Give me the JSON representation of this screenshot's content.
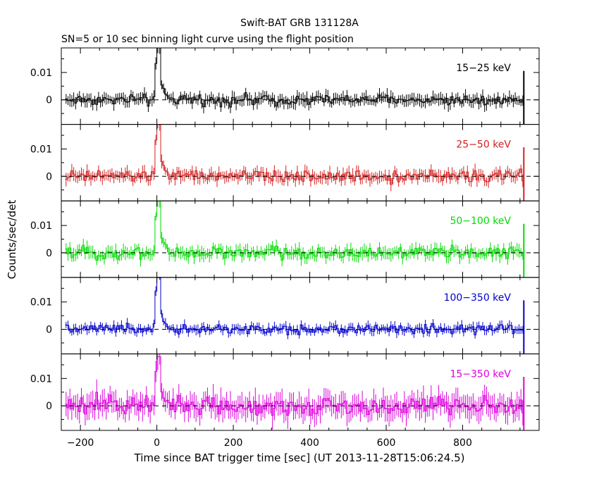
{
  "chart_data": {
    "type": "line",
    "title": "Swift-BAT GRB 131128A",
    "subtitle": "SN=5 or 10 sec binning light curve using the flight position",
    "xlabel": "Time since BAT trigger time [sec] (UT 2013-11-28T15:06:24.5)",
    "ylabel": "Counts/sec/det",
    "xlim": [
      -250,
      1000
    ],
    "ylim": [
      -0.009,
      0.019
    ],
    "x_ticks": [
      -200,
      0,
      200,
      400,
      600,
      800
    ],
    "x_tick_labels": [
      "−200",
      "0",
      "200",
      "400",
      "600",
      "800"
    ],
    "y_ticks": [
      0,
      0.01
    ],
    "y_tick_labels": [
      "0",
      "0.01"
    ],
    "bin_start": -240,
    "bin_step": 5,
    "bin_count": 240,
    "series": [
      {
        "name": "15−25 keV",
        "color": "#000000",
        "noise": 0.0012,
        "err": 0.002,
        "peak": 0.019
      },
      {
        "name": "25−50 keV",
        "color": "#d62020",
        "noise": 0.0013,
        "err": 0.002,
        "peak": 0.019
      },
      {
        "name": "50−100 keV",
        "color": "#00dd00",
        "noise": 0.0014,
        "err": 0.002,
        "peak": 0.019
      },
      {
        "name": "100−350 keV",
        "color": "#0000cc",
        "noise": 0.0011,
        "err": 0.0015,
        "peak": 0.02
      },
      {
        "name": "15−350 keV",
        "color": "#dd00dd",
        "noise": 0.0022,
        "err": 0.004,
        "peak": 0.018
      }
    ]
  }
}
